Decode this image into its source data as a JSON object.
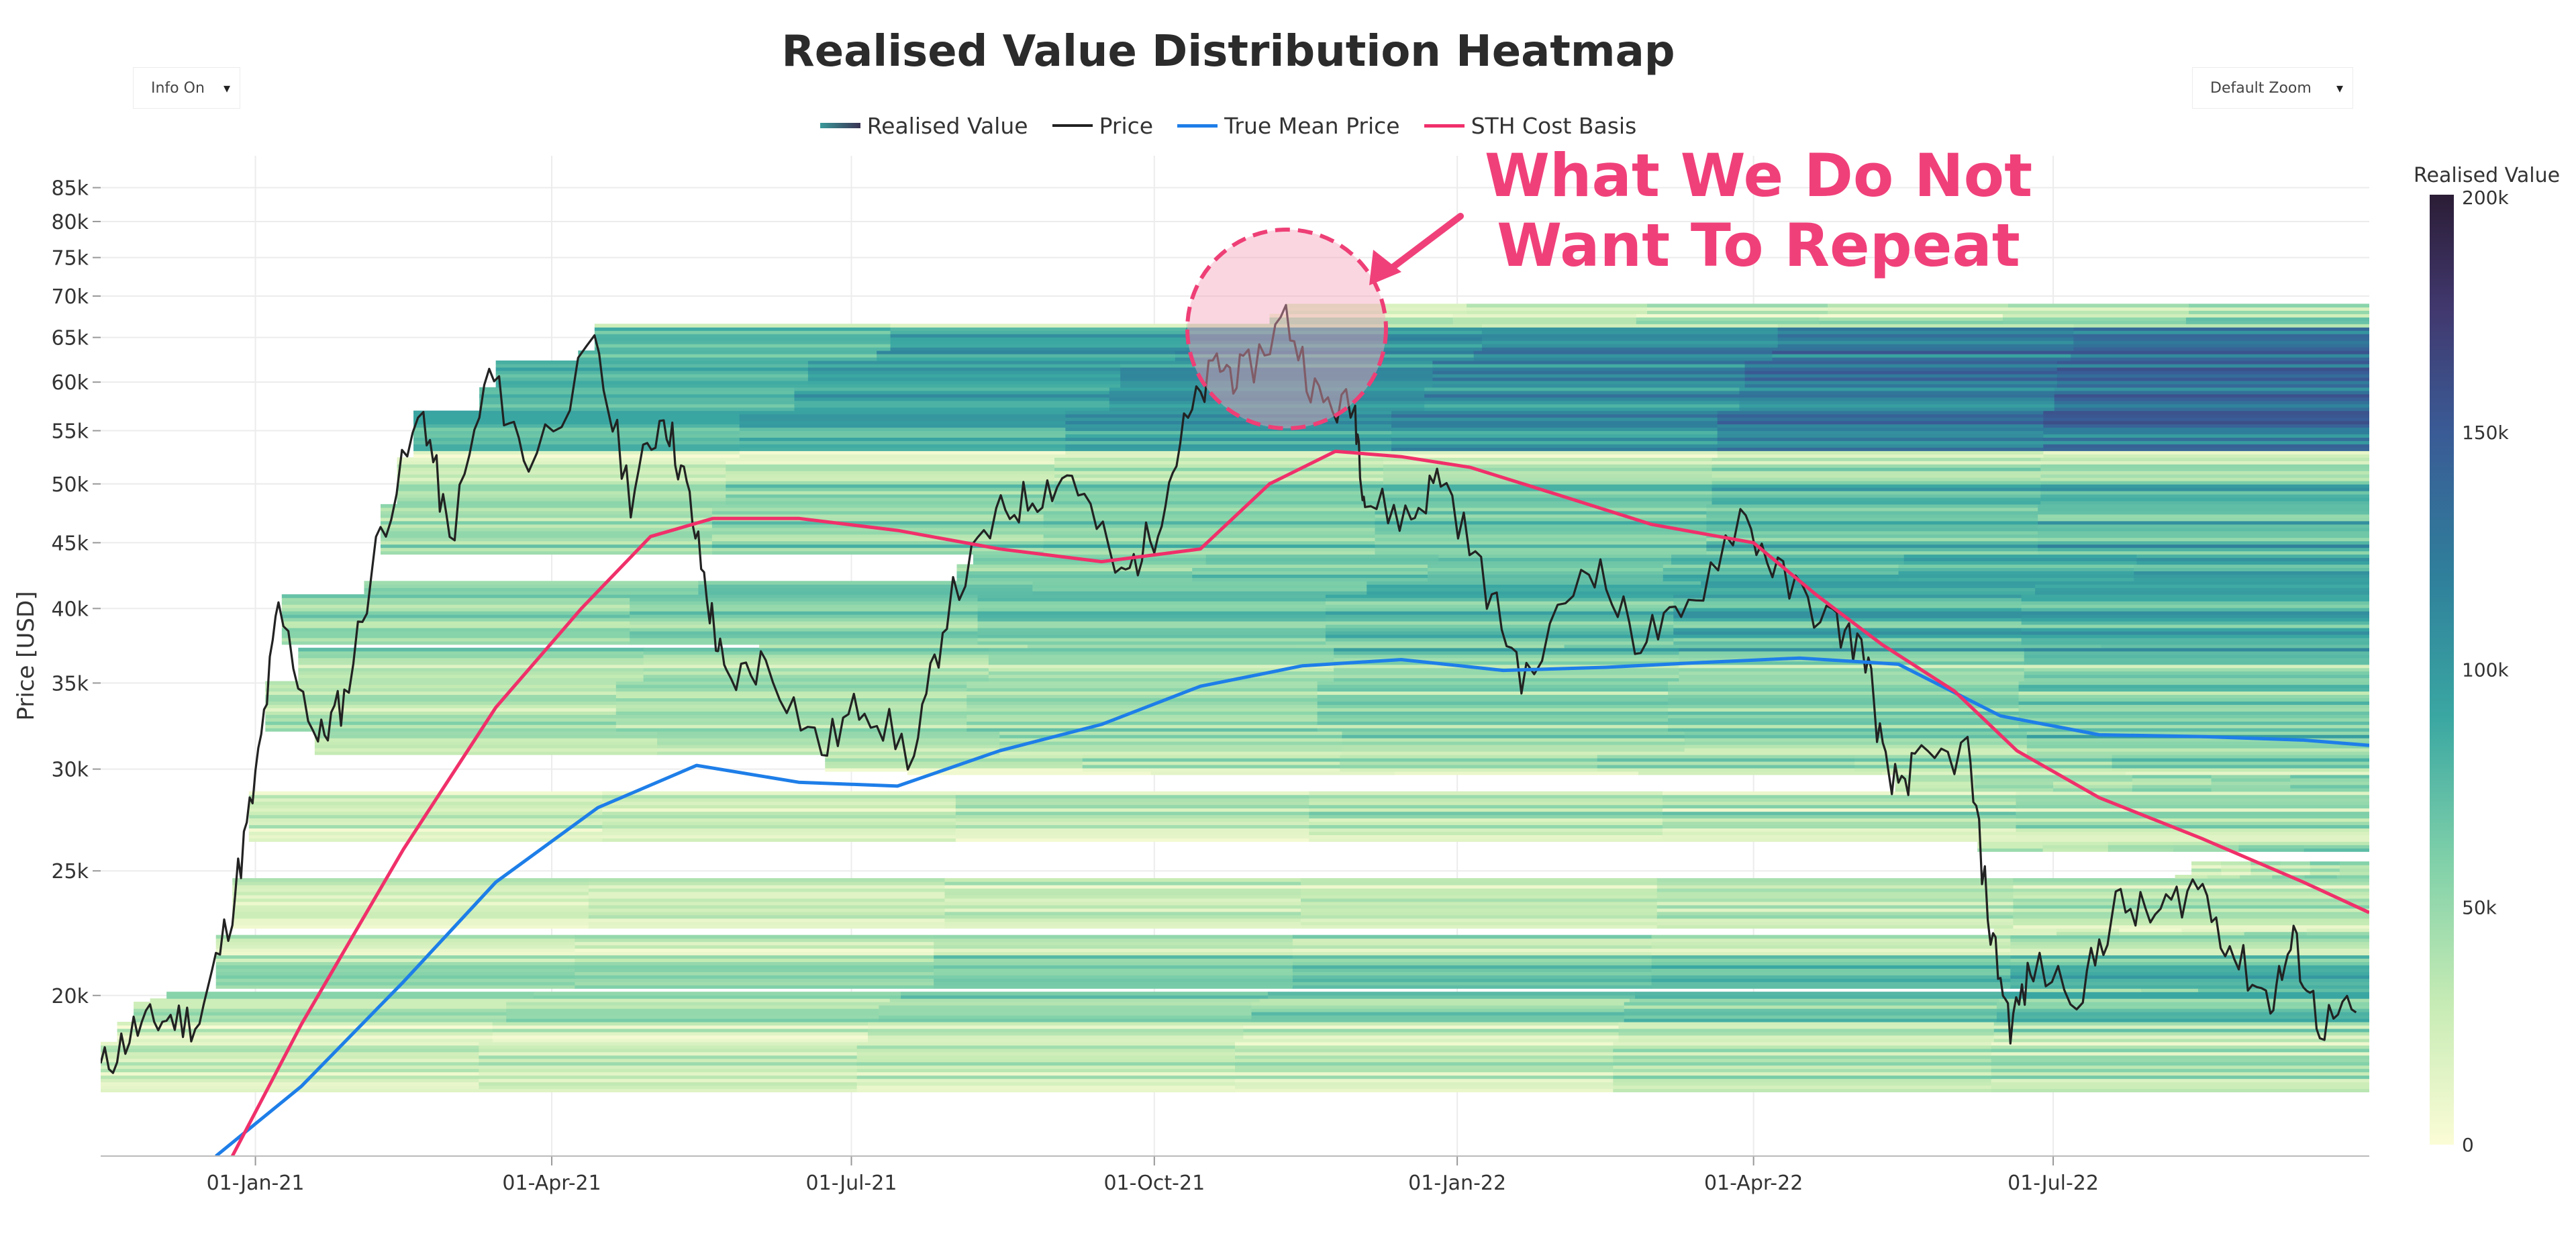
{
  "controls": {
    "info": "Info On",
    "zoom": "Default Zoom",
    "dropdown_glyph": "▾"
  },
  "annotation": {
    "line1": "What We Do Not",
    "line2": "Want To Repeat",
    "color": "#f0407a"
  },
  "colorbar": {
    "title": "Realised Value",
    "ticks": [
      "200k",
      "150k",
      "100k",
      "50k",
      "0"
    ],
    "tick_values": [
      200000,
      150000,
      100000,
      50000,
      0
    ]
  },
  "chart_data": {
    "type": "heatmap",
    "title": "Realised Value Distribution Heatmap",
    "xlabel": "",
    "ylabel": "Price [USD]",
    "y_scale": "log",
    "ylim": [
      15000,
      90000
    ],
    "xlim": [
      "2020-11-15",
      "2022-10-05"
    ],
    "x_ticks": [
      "01-Jan-21",
      "01-Apr-21",
      "01-Jul-21",
      "01-Oct-21",
      "01-Jan-22",
      "01-Apr-22",
      "01-Jul-22"
    ],
    "x_tick_dates": [
      "2021-01-01",
      "2021-04-01",
      "2021-07-01",
      "2021-10-01",
      "2022-01-01",
      "2022-04-01",
      "2022-07-01"
    ],
    "y_ticks": [
      "20k",
      "25k",
      "30k",
      "35k",
      "40k",
      "45k",
      "50k",
      "55k",
      "60k",
      "65k",
      "70k",
      "75k",
      "80k",
      "85k"
    ],
    "y_tick_values": [
      20000,
      25000,
      30000,
      35000,
      40000,
      45000,
      50000,
      55000,
      60000,
      65000,
      70000,
      75000,
      80000,
      85000
    ],
    "grid": true,
    "legend_position": "top-center",
    "legend": [
      {
        "name": "Realised Value",
        "kind": "gradient"
      },
      {
        "name": "Price",
        "color": "#222222"
      },
      {
        "name": "True Mean Price",
        "color": "#1e7ee8"
      },
      {
        "name": "STH Cost Basis",
        "color": "#f0306a"
      }
    ],
    "series": [
      {
        "name": "Price",
        "color": "#222222",
        "x": [
          "2020-11-15",
          "2020-11-25",
          "2020-12-05",
          "2020-12-15",
          "2020-12-25",
          "2021-01-01",
          "2021-01-08",
          "2021-01-20",
          "2021-01-28",
          "2021-02-08",
          "2021-02-21",
          "2021-03-01",
          "2021-03-13",
          "2021-03-25",
          "2021-04-14",
          "2021-04-25",
          "2021-05-05",
          "2021-05-12",
          "2021-05-19",
          "2021-05-24",
          "2021-06-05",
          "2021-06-22",
          "2021-07-05",
          "2021-07-20",
          "2021-07-30",
          "2021-08-14",
          "2021-08-25",
          "2021-09-06",
          "2021-09-21",
          "2021-10-01",
          "2021-10-10",
          "2021-10-20",
          "2021-10-28",
          "2021-11-10",
          "2021-11-20",
          "2021-12-01",
          "2021-12-04",
          "2021-12-18",
          "2021-12-27",
          "2022-01-10",
          "2022-01-22",
          "2022-02-10",
          "2022-02-24",
          "2022-03-10",
          "2022-03-28",
          "2022-04-10",
          "2022-04-25",
          "2022-05-05",
          "2022-05-12",
          "2022-05-20",
          "2022-06-05",
          "2022-06-12",
          "2022-06-18",
          "2022-06-25",
          "2022-07-10",
          "2022-07-20",
          "2022-08-01",
          "2022-08-14",
          "2022-08-25",
          "2022-09-05",
          "2022-09-12",
          "2022-09-20",
          "2022-10-01"
        ],
        "values": [
          17500,
          18800,
          19200,
          19100,
          23500,
          29300,
          40000,
          31500,
          34000,
          46000,
          57000,
          45000,
          61000,
          52000,
          63500,
          49000,
          57000,
          49500,
          40000,
          35000,
          36500,
          31000,
          34000,
          30500,
          40000,
          47000,
          49000,
          51000,
          42000,
          46000,
          55000,
          62000,
          60500,
          67500,
          58000,
          57000,
          48500,
          47000,
          51000,
          41500,
          35000,
          44000,
          38000,
          39000,
          47500,
          42000,
          39000,
          37000,
          29000,
          30000,
          31000,
          22500,
          19000,
          21000,
          20200,
          23500,
          23000,
          24500,
          21500,
          19800,
          22000,
          19000,
          19400
        ]
      },
      {
        "name": "True Mean Price",
        "color": "#1e7ee8",
        "x": [
          "2020-12-20",
          "2021-01-15",
          "2021-02-15",
          "2021-03-15",
          "2021-04-15",
          "2021-05-15",
          "2021-06-15",
          "2021-07-15",
          "2021-08-15",
          "2021-09-15",
          "2021-10-15",
          "2021-11-15",
          "2021-12-15",
          "2022-01-15",
          "2022-02-15",
          "2022-03-15",
          "2022-04-15",
          "2022-05-15",
          "2022-06-15",
          "2022-07-15",
          "2022-08-15",
          "2022-09-15",
          "2022-10-05"
        ],
        "values": [
          15000,
          17000,
          20500,
          24500,
          28000,
          30200,
          29300,
          29100,
          31000,
          32500,
          34800,
          36100,
          36500,
          35800,
          36000,
          36300,
          36600,
          36200,
          33000,
          31900,
          31800,
          31600,
          31300
        ]
      },
      {
        "name": "STH Cost Basis",
        "color": "#f0306a",
        "x": [
          "2020-12-25",
          "2021-01-15",
          "2021-02-15",
          "2021-03-15",
          "2021-04-10",
          "2021-05-01",
          "2021-05-20",
          "2021-06-15",
          "2021-07-15",
          "2021-08-15",
          "2021-09-15",
          "2021-10-15",
          "2021-11-05",
          "2021-11-25",
          "2021-12-15",
          "2022-01-05",
          "2022-02-01",
          "2022-03-01",
          "2022-04-01",
          "2022-04-20",
          "2022-05-10",
          "2022-06-01",
          "2022-06-20",
          "2022-07-15",
          "2022-08-15",
          "2022-09-15",
          "2022-10-05"
        ],
        "values": [
          15000,
          19000,
          26000,
          33500,
          40000,
          45500,
          47000,
          47000,
          46000,
          44500,
          43500,
          44500,
          50000,
          53000,
          52500,
          51500,
          49000,
          46500,
          45000,
          41000,
          37500,
          34500,
          31000,
          28500,
          26500,
          24500,
          23200
        ]
      }
    ],
    "heatmap_color_range": [
      0,
      200000
    ]
  }
}
